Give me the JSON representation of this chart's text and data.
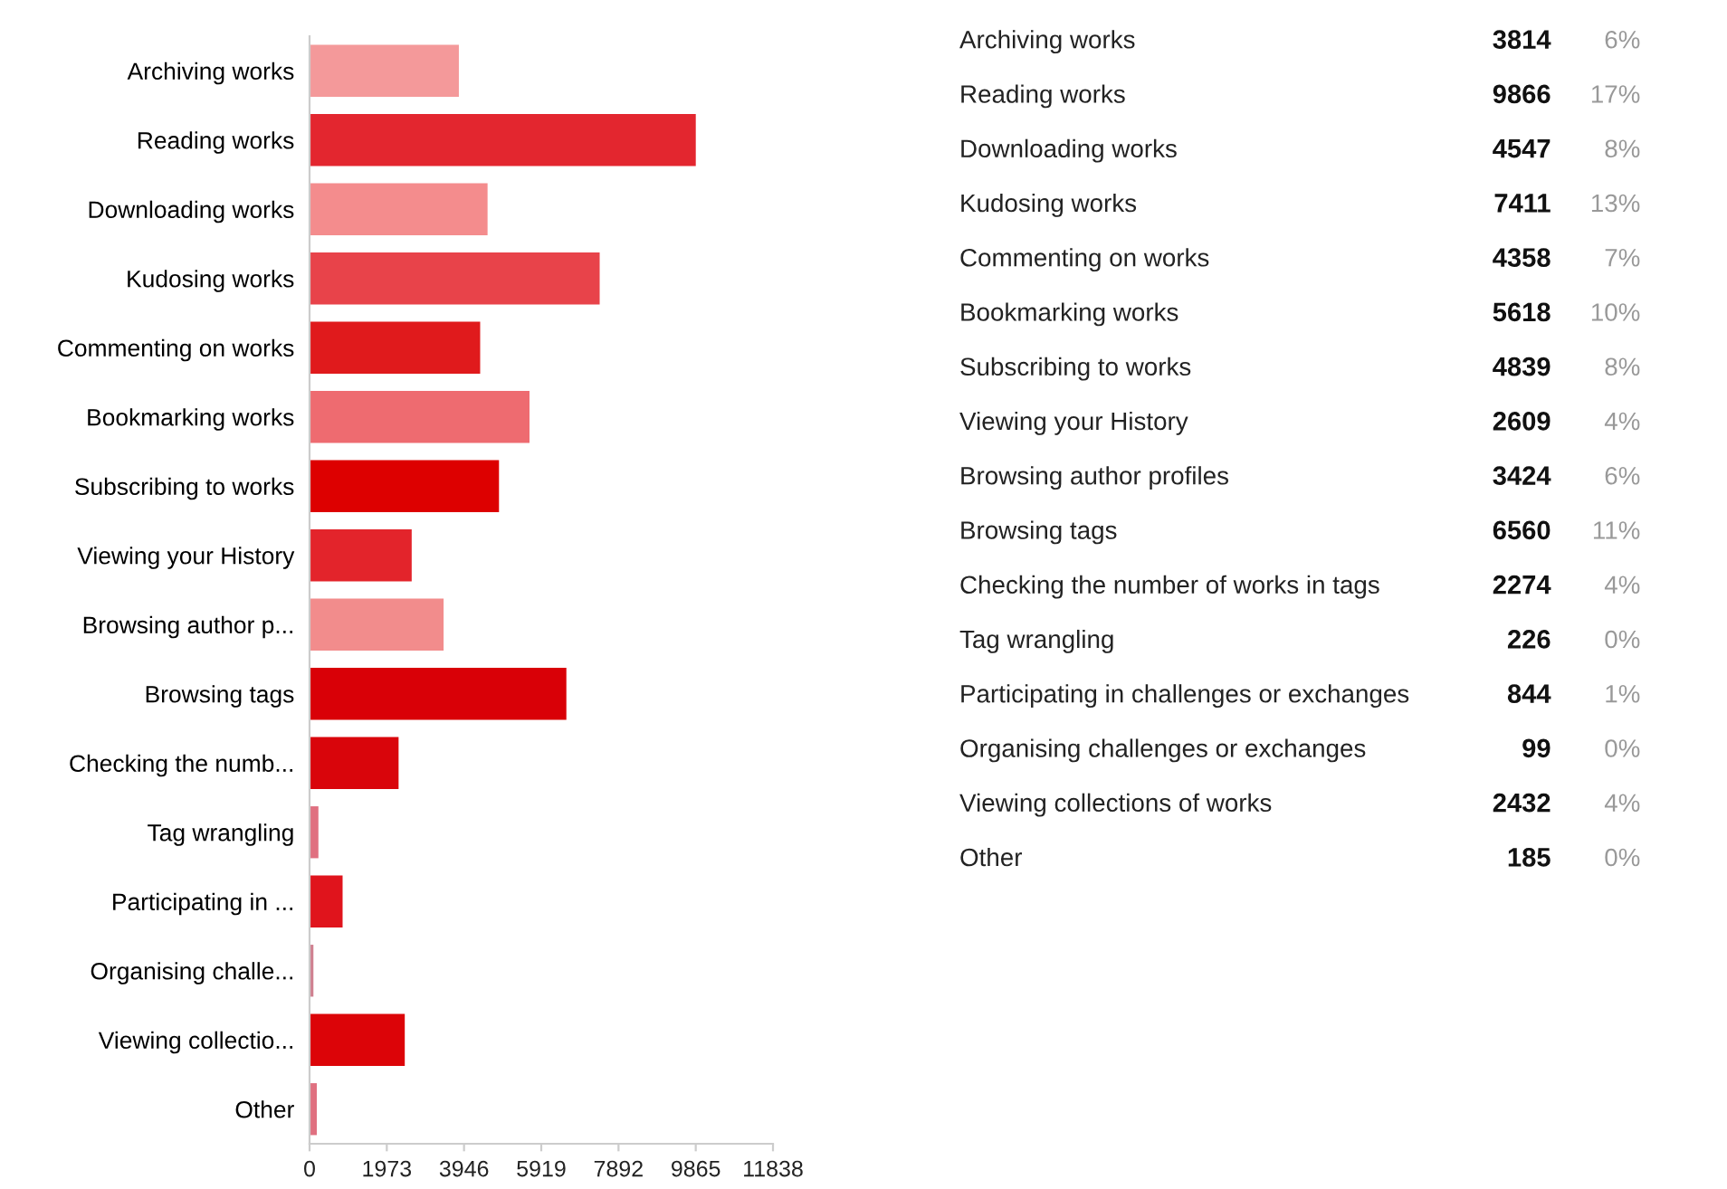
{
  "chart_data": [
    {
      "type": "bar",
      "orientation": "horizontal",
      "categories": [
        "Archiving works",
        "Reading works",
        "Downloading works",
        "Kudosing works",
        "Commenting on works",
        "Bookmarking works",
        "Subscribing to works",
        "Viewing your History",
        "Browsing author p...",
        "Browsing tags",
        "Checking the numb...",
        "Tag wrangling",
        "Participating in ...",
        "Organising challe...",
        "Viewing collectio...",
        "Other"
      ],
      "values": [
        3814,
        9866,
        4547,
        7411,
        4358,
        5618,
        4839,
        2609,
        3424,
        6560,
        2274,
        226,
        844,
        99,
        2432,
        185
      ],
      "colors": [
        "#f4999a",
        "#e3262f",
        "#f48c8d",
        "#e8434a",
        "#e01a1c",
        "#ee6b70",
        "#dd0000",
        "#e3242b",
        "#f28c8c",
        "#d90007",
        "#d9050b",
        "#e07080",
        "#e0141c",
        "#d08090",
        "#dc0408",
        "#e07080"
      ],
      "xlim": [
        0,
        11838
      ],
      "xticks": [
        0,
        1973,
        3946,
        5919,
        7892,
        9865,
        11838
      ],
      "grid": false
    },
    {
      "type": "other",
      "categories": [
        "Archiving works",
        "Reading works",
        "Downloading works",
        "Kudosing works",
        "Commenting on works",
        "Bookmarking works",
        "Subscribing to works",
        "Viewing your History",
        "Browsing author profiles",
        "Browsing tags",
        "Checking the number of works in tags",
        "Tag wrangling",
        "Participating in challenges or exchanges",
        "Organising challenges or exchanges",
        "Viewing collections of works",
        "Other"
      ],
      "values": [
        3814,
        9866,
        4547,
        7411,
        4358,
        5618,
        4839,
        2609,
        3424,
        6560,
        2274,
        226,
        844,
        99,
        2432,
        185
      ],
      "annotations": [
        "6%",
        "17%",
        "8%",
        "13%",
        "7%",
        "10%",
        "8%",
        "4%",
        "6%",
        "11%",
        "4%",
        "0%",
        "1%",
        "0%",
        "4%",
        "0%"
      ],
      "data_labels": true
    }
  ]
}
